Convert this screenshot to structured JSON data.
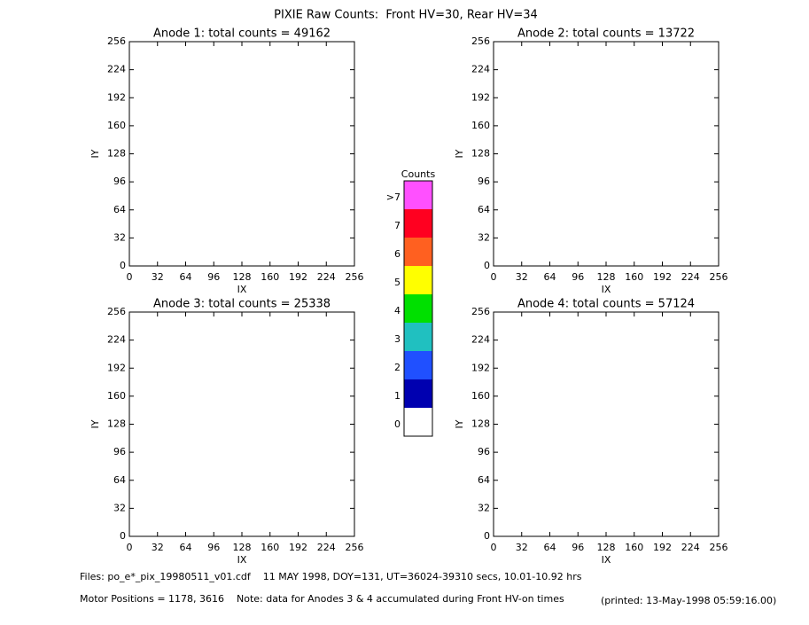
{
  "title": "PIXIE Raw Counts:  Front HV=30, Rear HV=34",
  "chart_data": [
    {
      "type": "heatmap",
      "title": "Anode 1: total counts = 49162",
      "x_label": "IX",
      "y_label": "IY",
      "xlim": [
        0,
        256
      ],
      "ylim": [
        0,
        256
      ],
      "xticks": [
        0,
        32,
        64,
        96,
        128,
        160,
        192,
        224,
        256
      ],
      "yticks": [
        0,
        32,
        64,
        96,
        128,
        160,
        192,
        224,
        256
      ]
    },
    {
      "type": "heatmap",
      "title": "Anode 2: total counts = 13722",
      "x_label": "IX",
      "y_label": "IY",
      "xlim": [
        0,
        256
      ],
      "ylim": [
        0,
        256
      ],
      "xticks": [
        0,
        32,
        64,
        96,
        128,
        160,
        192,
        224,
        256
      ],
      "yticks": [
        0,
        32,
        64,
        96,
        128,
        160,
        192,
        224,
        256
      ]
    },
    {
      "type": "heatmap",
      "title": "Anode 3: total counts = 25338",
      "x_label": "IX",
      "y_label": "IY",
      "xlim": [
        0,
        256
      ],
      "ylim": [
        0,
        256
      ],
      "xticks": [
        0,
        32,
        64,
        96,
        128,
        160,
        192,
        224,
        256
      ],
      "yticks": [
        0,
        32,
        64,
        96,
        128,
        160,
        192,
        224,
        256
      ]
    },
    {
      "type": "heatmap",
      "title": "Anode 4: total counts = 57124",
      "x_label": "IX",
      "y_label": "IY",
      "xlim": [
        0,
        256
      ],
      "ylim": [
        0,
        256
      ],
      "xticks": [
        0,
        32,
        64,
        96,
        128,
        160,
        192,
        224,
        256
      ],
      "yticks": [
        0,
        32,
        64,
        96,
        128,
        160,
        192,
        224,
        256
      ]
    }
  ],
  "colorbar": {
    "title": "Counts",
    "levels": [
      {
        "label": "0",
        "color": "#ffffff"
      },
      {
        "label": "1",
        "color": "#0000b0"
      },
      {
        "label": "2",
        "color": "#2050ff"
      },
      {
        "label": "3",
        "color": "#20c0c0"
      },
      {
        "label": "4",
        "color": "#00e000"
      },
      {
        "label": "5",
        "color": "#ffff00"
      },
      {
        "label": "6",
        "color": "#ff6020"
      },
      {
        "label": "7",
        "color": "#ff0020"
      },
      {
        "label": ">7",
        "color": "#ff50ff"
      }
    ]
  },
  "footer": {
    "files": "Files: po_e*_pix_19980511_v01.cdf    11 MAY 1998, DOY=131, UT=36024-39310 secs, 10.01-10.92 hrs",
    "motor": "Motor Positions = 1178, 3616    Note: data for Anodes 3 & 4 accumulated during Front HV-on times",
    "printed": "(printed: 13-May-1998 05:59:16.00)"
  }
}
